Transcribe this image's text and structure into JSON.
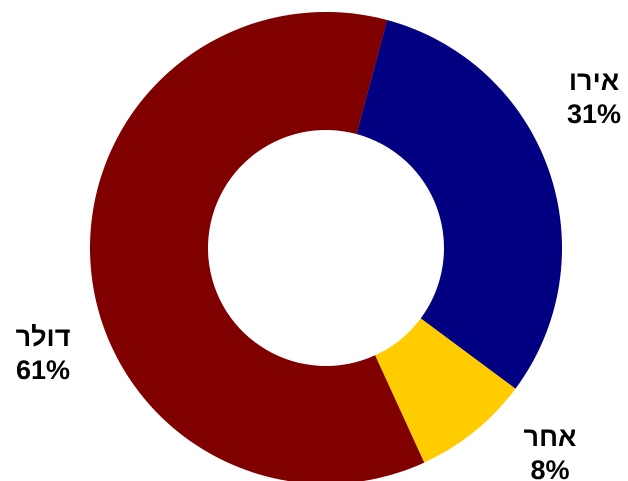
{
  "chart_data": {
    "type": "pie",
    "variant": "donut",
    "title": "",
    "legend": "none",
    "slices": [
      {
        "label": "אירו",
        "value": 31,
        "display": "31%",
        "color": "#000080"
      },
      {
        "label": "אחר",
        "value": 8,
        "display": "8%",
        "color": "#FFCC00"
      },
      {
        "label": "דולר",
        "value": 61,
        "display": "61%",
        "color": "#800000"
      }
    ]
  }
}
